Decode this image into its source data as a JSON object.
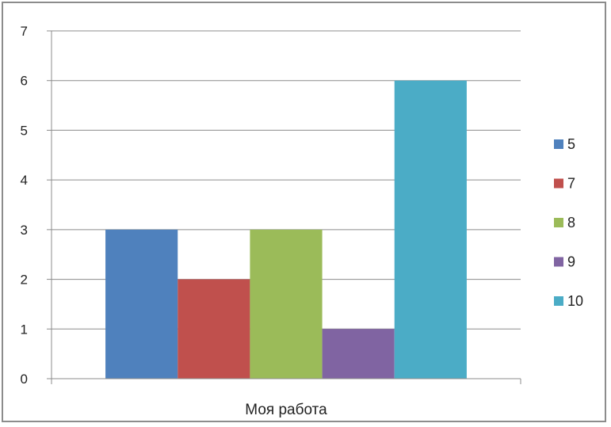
{
  "chart_data": {
    "type": "bar",
    "categories": [
      "Моя работа"
    ],
    "series": [
      {
        "name": "5",
        "values": [
          3
        ],
        "color": "#4F81BD"
      },
      {
        "name": "7",
        "values": [
          2
        ],
        "color": "#C0504D"
      },
      {
        "name": "8",
        "values": [
          3
        ],
        "color": "#9BBB59"
      },
      {
        "name": "9",
        "values": [
          1
        ],
        "color": "#8064A2"
      },
      {
        "name": "10",
        "values": [
          6
        ],
        "color": "#4BACC6"
      }
    ],
    "title": "",
    "xlabel": "",
    "ylabel": "",
    "ylim": [
      0,
      7
    ],
    "yticks": [
      "0",
      "1",
      "2",
      "3",
      "4",
      "5",
      "6",
      "7"
    ],
    "grid": true,
    "legend_position": "right"
  }
}
